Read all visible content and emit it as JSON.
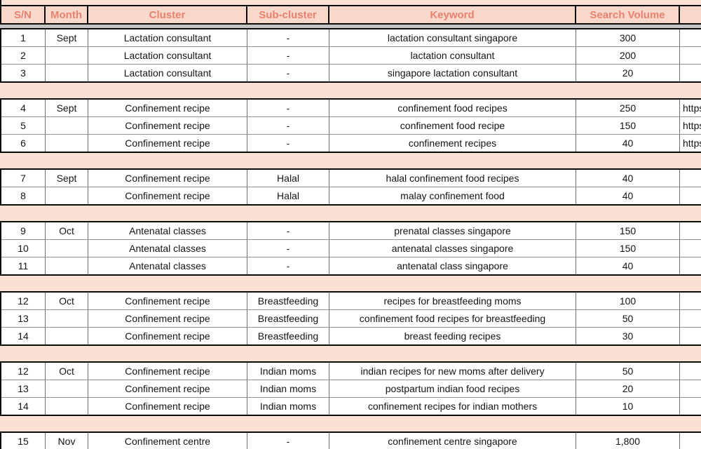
{
  "colors": {
    "header_bg": "#F8D8CB",
    "header_text": "#E8816E",
    "separator_bg": "#FAE1D6",
    "gridline_gray": "#6e6e6e",
    "row_line_gray": "#8f8f8f",
    "group_border_black": "#0a0a0a",
    "freeze_bar_gray": "#C4C4C4",
    "cell_text": "#141414"
  },
  "header": {
    "columns": [
      {
        "id": "sn",
        "label": "S/N"
      },
      {
        "id": "month",
        "label": "Month"
      },
      {
        "id": "cluster",
        "label": "Cluster"
      },
      {
        "id": "sub",
        "label": "Sub-cluster"
      },
      {
        "id": "keyword",
        "label": "Keyword"
      },
      {
        "id": "volume",
        "label": "Search Volume"
      },
      {
        "id": "link",
        "label": ""
      }
    ]
  },
  "groups": [
    {
      "rows": [
        {
          "sn": "1",
          "month": "Sept",
          "cluster": "Lactation consultant",
          "sub": "-",
          "keyword": "lactation consultant singapore",
          "volume": "300",
          "link": ""
        },
        {
          "sn": "2",
          "month": "",
          "cluster": "Lactation consultant",
          "sub": "-",
          "keyword": "lactation consultant",
          "volume": "200",
          "link": ""
        },
        {
          "sn": "3",
          "month": "",
          "cluster": "Lactation consultant",
          "sub": "-",
          "keyword": "singapore lactation consultant",
          "volume": "20",
          "link": ""
        }
      ]
    },
    {
      "rows": [
        {
          "sn": "4",
          "month": "Sept",
          "cluster": "Confinement recipe",
          "sub": "-",
          "keyword": "confinement food recipes",
          "volume": "250",
          "link": "https"
        },
        {
          "sn": "5",
          "month": "",
          "cluster": "Confinement recipe",
          "sub": "-",
          "keyword": "confinement food recipe",
          "volume": "150",
          "link": "https"
        },
        {
          "sn": "6",
          "month": "",
          "cluster": "Confinement recipe",
          "sub": "-",
          "keyword": "confinement recipes",
          "volume": "40",
          "link": "https"
        }
      ]
    },
    {
      "rows": [
        {
          "sn": "7",
          "month": "Sept",
          "cluster": "Confinement recipe",
          "sub": "Halal",
          "keyword": "halal confinement food recipes",
          "volume": "40",
          "link": ""
        },
        {
          "sn": "8",
          "month": "",
          "cluster": "Confinement recipe",
          "sub": "Halal",
          "keyword": "malay confinement food",
          "volume": "40",
          "link": ""
        }
      ]
    },
    {
      "rows": [
        {
          "sn": "9",
          "month": "Oct",
          "cluster": "Antenatal classes",
          "sub": "-",
          "keyword": "prenatal classes singapore",
          "volume": "150",
          "link": ""
        },
        {
          "sn": "10",
          "month": "",
          "cluster": "Antenatal classes",
          "sub": "-",
          "keyword": "antenatal classes singapore",
          "volume": "150",
          "link": ""
        },
        {
          "sn": "11",
          "month": "",
          "cluster": "Antenatal classes",
          "sub": "-",
          "keyword": "antenatal class singapore",
          "volume": "40",
          "link": ""
        }
      ]
    },
    {
      "rows": [
        {
          "sn": "12",
          "month": "Oct",
          "cluster": "Confinement recipe",
          "sub": "Breastfeeding",
          "keyword": "recipes for breastfeeding moms",
          "volume": "100",
          "link": ""
        },
        {
          "sn": "13",
          "month": "",
          "cluster": "Confinement recipe",
          "sub": "Breastfeeding",
          "keyword": "confinement food recipes for breastfeeding",
          "volume": "50",
          "link": ""
        },
        {
          "sn": "14",
          "month": "",
          "cluster": "Confinement recipe",
          "sub": "Breastfeeding",
          "keyword": "breast feeding recipes",
          "volume": "30",
          "link": ""
        }
      ]
    },
    {
      "rows": [
        {
          "sn": "12",
          "month": "Oct",
          "cluster": "Confinement recipe",
          "sub": "Indian moms",
          "keyword": "indian recipes for new moms after delivery",
          "volume": "50",
          "link": ""
        },
        {
          "sn": "13",
          "month": "",
          "cluster": "Confinement recipe",
          "sub": "Indian moms",
          "keyword": "postpartum indian food recipes",
          "volume": "20",
          "link": ""
        },
        {
          "sn": "14",
          "month": "",
          "cluster": "Confinement recipe",
          "sub": "Indian moms",
          "keyword": "confinement recipes for indian mothers",
          "volume": "10",
          "link": ""
        }
      ]
    },
    {
      "rows": [
        {
          "sn": "15",
          "month": "Nov",
          "cluster": "Confinement centre",
          "sub": "-",
          "keyword": "confinement centre singapore",
          "volume": "1,800",
          "link": ""
        }
      ]
    }
  ]
}
